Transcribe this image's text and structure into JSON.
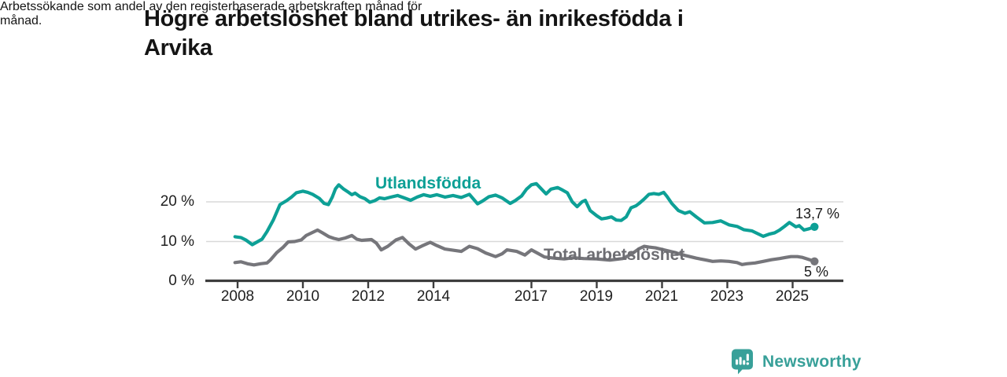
{
  "header": {
    "title_lines": [
      "Högre arbetslöshet bland utrikes- än inrikesfödda i",
      "Arvika"
    ],
    "subtitle_lines": [
      "Arbetssökande som andel av den registerbaserade arbetskraften månad för",
      "månad."
    ]
  },
  "chart_data": {
    "type": "line",
    "title": "Högre arbetslöshet bland utrikes- än inrikesfödda i Arvika",
    "subtitle": "Arbetssökande som andel av den registerbaserade arbetskraften månad för månad.",
    "unit": "%",
    "grid": "horizontal",
    "legend_position": "inline-labels",
    "x_axis": {
      "ticks": [
        2008,
        2010,
        2012,
        2014,
        2017,
        2019,
        2021,
        2023,
        2025
      ],
      "range": [
        2007.9,
        2025.75
      ]
    },
    "y_axis": {
      "ticks": [
        {
          "label": "20 %",
          "value": 20
        },
        {
          "label": "10 %",
          "value": 10
        },
        {
          "label": "0 %",
          "value": 0
        }
      ],
      "range": [
        0,
        26
      ],
      "gridline_values": [
        10,
        20
      ]
    },
    "series": [
      {
        "name": "Utlandsfödda",
        "color": "#0da096",
        "end_label": "13,7 %",
        "end_value": 13.7,
        "points": [
          [
            2007.92,
            11.2
          ],
          [
            2008.1,
            11.0
          ],
          [
            2008.25,
            10.4
          ],
          [
            2008.45,
            9.2
          ],
          [
            2008.6,
            9.9
          ],
          [
            2008.75,
            10.6
          ],
          [
            2008.9,
            12.5
          ],
          [
            2009.1,
            15.5
          ],
          [
            2009.3,
            19.3
          ],
          [
            2009.5,
            20.3
          ],
          [
            2009.65,
            21.2
          ],
          [
            2009.8,
            22.3
          ],
          [
            2010.0,
            22.7
          ],
          [
            2010.15,
            22.4
          ],
          [
            2010.3,
            21.9
          ],
          [
            2010.5,
            20.9
          ],
          [
            2010.65,
            19.6
          ],
          [
            2010.78,
            19.3
          ],
          [
            2010.9,
            21.2
          ],
          [
            2011.0,
            23.3
          ],
          [
            2011.1,
            24.3
          ],
          [
            2011.25,
            23.2
          ],
          [
            2011.4,
            22.4
          ],
          [
            2011.5,
            21.8
          ],
          [
            2011.6,
            22.2
          ],
          [
            2011.75,
            21.3
          ],
          [
            2011.9,
            20.8
          ],
          [
            2012.05,
            19.9
          ],
          [
            2012.2,
            20.3
          ],
          [
            2012.35,
            21.0
          ],
          [
            2012.5,
            20.8
          ],
          [
            2012.7,
            21.2
          ],
          [
            2012.9,
            21.6
          ],
          [
            2013.1,
            21.0
          ],
          [
            2013.3,
            20.4
          ],
          [
            2013.5,
            21.2
          ],
          [
            2013.7,
            21.8
          ],
          [
            2013.9,
            21.4
          ],
          [
            2014.1,
            21.8
          ],
          [
            2014.35,
            21.2
          ],
          [
            2014.6,
            21.6
          ],
          [
            2014.85,
            21.1
          ],
          [
            2015.1,
            21.9
          ],
          [
            2015.35,
            19.5
          ],
          [
            2015.5,
            20.2
          ],
          [
            2015.7,
            21.3
          ],
          [
            2015.9,
            21.7
          ],
          [
            2016.1,
            21.0
          ],
          [
            2016.35,
            19.6
          ],
          [
            2016.5,
            20.3
          ],
          [
            2016.7,
            21.5
          ],
          [
            2016.85,
            23.2
          ],
          [
            2017.0,
            24.3
          ],
          [
            2017.15,
            24.6
          ],
          [
            2017.3,
            23.3
          ],
          [
            2017.45,
            22.0
          ],
          [
            2017.6,
            23.2
          ],
          [
            2017.8,
            23.6
          ],
          [
            2017.95,
            23.0
          ],
          [
            2018.1,
            22.3
          ],
          [
            2018.25,
            20.0
          ],
          [
            2018.4,
            18.8
          ],
          [
            2018.55,
            20.0
          ],
          [
            2018.65,
            20.4
          ],
          [
            2018.8,
            17.8
          ],
          [
            2019.0,
            16.5
          ],
          [
            2019.15,
            15.7
          ],
          [
            2019.3,
            15.9
          ],
          [
            2019.45,
            16.2
          ],
          [
            2019.6,
            15.4
          ],
          [
            2019.75,
            15.3
          ],
          [
            2019.9,
            16.2
          ],
          [
            2020.05,
            18.5
          ],
          [
            2020.2,
            19.0
          ],
          [
            2020.3,
            19.6
          ],
          [
            2020.45,
            20.7
          ],
          [
            2020.6,
            21.9
          ],
          [
            2020.75,
            22.1
          ],
          [
            2020.9,
            21.9
          ],
          [
            2021.05,
            22.4
          ],
          [
            2021.15,
            21.4
          ],
          [
            2021.3,
            19.6
          ],
          [
            2021.5,
            17.8
          ],
          [
            2021.7,
            17.1
          ],
          [
            2021.85,
            17.5
          ],
          [
            2022.05,
            16.2
          ],
          [
            2022.3,
            14.7
          ],
          [
            2022.55,
            14.8
          ],
          [
            2022.8,
            15.2
          ],
          [
            2023.05,
            14.2
          ],
          [
            2023.3,
            13.8
          ],
          [
            2023.5,
            13.0
          ],
          [
            2023.75,
            12.7
          ],
          [
            2024.0,
            11.7
          ],
          [
            2024.1,
            11.3
          ],
          [
            2024.3,
            11.9
          ],
          [
            2024.45,
            12.2
          ],
          [
            2024.6,
            12.9
          ],
          [
            2024.75,
            13.8
          ],
          [
            2024.9,
            14.8
          ],
          [
            2025.1,
            13.7
          ],
          [
            2025.2,
            14.0
          ],
          [
            2025.35,
            12.9
          ],
          [
            2025.5,
            13.2
          ],
          [
            2025.67,
            13.7
          ]
        ]
      },
      {
        "name": "Total arbetslöshet",
        "color": "#76767b",
        "end_label": "5 %",
        "end_value": 5,
        "points": [
          [
            2007.92,
            4.7
          ],
          [
            2008.1,
            4.9
          ],
          [
            2008.3,
            4.4
          ],
          [
            2008.5,
            4.1
          ],
          [
            2008.7,
            4.4
          ],
          [
            2008.9,
            4.6
          ],
          [
            2009.0,
            5.3
          ],
          [
            2009.2,
            7.2
          ],
          [
            2009.4,
            8.6
          ],
          [
            2009.55,
            9.9
          ],
          [
            2009.75,
            10.0
          ],
          [
            2009.95,
            10.4
          ],
          [
            2010.1,
            11.5
          ],
          [
            2010.3,
            12.3
          ],
          [
            2010.45,
            12.9
          ],
          [
            2010.6,
            12.2
          ],
          [
            2010.8,
            11.2
          ],
          [
            2010.95,
            10.8
          ],
          [
            2011.1,
            10.5
          ],
          [
            2011.3,
            10.9
          ],
          [
            2011.5,
            11.5
          ],
          [
            2011.65,
            10.6
          ],
          [
            2011.8,
            10.3
          ],
          [
            2011.95,
            10.4
          ],
          [
            2012.1,
            10.5
          ],
          [
            2012.25,
            9.6
          ],
          [
            2012.4,
            7.9
          ],
          [
            2012.6,
            8.8
          ],
          [
            2012.85,
            10.4
          ],
          [
            2013.05,
            11.0
          ],
          [
            2013.25,
            9.4
          ],
          [
            2013.45,
            8.1
          ],
          [
            2013.65,
            8.9
          ],
          [
            2013.9,
            9.8
          ],
          [
            2014.1,
            9.0
          ],
          [
            2014.35,
            8.1
          ],
          [
            2014.6,
            7.8
          ],
          [
            2014.85,
            7.5
          ],
          [
            2015.1,
            8.8
          ],
          [
            2015.35,
            8.2
          ],
          [
            2015.6,
            7.1
          ],
          [
            2015.9,
            6.2
          ],
          [
            2016.1,
            6.9
          ],
          [
            2016.25,
            7.9
          ],
          [
            2016.55,
            7.5
          ],
          [
            2016.8,
            6.6
          ],
          [
            2017.0,
            7.9
          ],
          [
            2017.2,
            7.0
          ],
          [
            2017.4,
            6.1
          ],
          [
            2017.7,
            5.8
          ],
          [
            2018.0,
            5.6
          ],
          [
            2018.3,
            5.9
          ],
          [
            2018.6,
            5.7
          ],
          [
            2019.0,
            5.6
          ],
          [
            2019.4,
            5.3
          ],
          [
            2019.8,
            5.7
          ],
          [
            2020.1,
            7.0
          ],
          [
            2020.3,
            8.2
          ],
          [
            2020.45,
            8.8
          ],
          [
            2020.6,
            8.6
          ],
          [
            2020.8,
            8.4
          ],
          [
            2021.1,
            7.8
          ],
          [
            2021.4,
            7.2
          ],
          [
            2021.7,
            6.5
          ],
          [
            2022.05,
            5.8
          ],
          [
            2022.3,
            5.4
          ],
          [
            2022.55,
            5.0
          ],
          [
            2022.8,
            5.1
          ],
          [
            2023.05,
            5.0
          ],
          [
            2023.3,
            4.7
          ],
          [
            2023.45,
            4.2
          ],
          [
            2023.6,
            4.4
          ],
          [
            2023.85,
            4.6
          ],
          [
            2024.1,
            5.0
          ],
          [
            2024.35,
            5.4
          ],
          [
            2024.6,
            5.7
          ],
          [
            2024.8,
            6.0
          ],
          [
            2024.95,
            6.2
          ],
          [
            2025.15,
            6.2
          ],
          [
            2025.3,
            6.0
          ],
          [
            2025.45,
            5.6
          ],
          [
            2025.67,
            5.0
          ]
        ]
      }
    ]
  },
  "footer": {
    "brand": "Newsworthy",
    "brand_color": "#38a099"
  }
}
